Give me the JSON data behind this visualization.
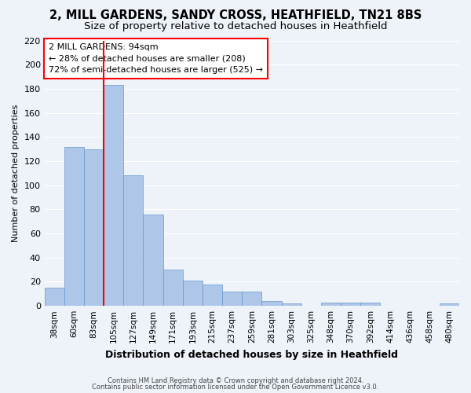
{
  "title1": "2, MILL GARDENS, SANDY CROSS, HEATHFIELD, TN21 8BS",
  "title2": "Size of property relative to detached houses in Heathfield",
  "xlabel": "Distribution of detached houses by size in Heathfield",
  "ylabel": "Number of detached properties",
  "categories": [
    "38sqm",
    "60sqm",
    "83sqm",
    "105sqm",
    "127sqm",
    "149sqm",
    "171sqm",
    "193sqm",
    "215sqm",
    "237sqm",
    "259sqm",
    "281sqm",
    "303sqm",
    "325sqm",
    "348sqm",
    "370sqm",
    "392sqm",
    "414sqm",
    "436sqm",
    "458sqm",
    "480sqm"
  ],
  "values": [
    15,
    132,
    130,
    183,
    108,
    76,
    30,
    21,
    18,
    12,
    12,
    4,
    2,
    0,
    3,
    3,
    3,
    0,
    0,
    0,
    2
  ],
  "bar_color": "#aec6e8",
  "bar_edge_color": "#6699cc",
  "ylim": [
    0,
    220
  ],
  "yticks": [
    0,
    20,
    40,
    60,
    80,
    100,
    120,
    140,
    160,
    180,
    200,
    220
  ],
  "red_line_x": 2.5,
  "annotation_text": "2 MILL GARDENS: 94sqm\n← 28% of detached houses are smaller (208)\n72% of semi-detached houses are larger (525) →",
  "footer1": "Contains HM Land Registry data © Crown copyright and database right 2024.",
  "footer2": "Contains public sector information licensed under the Open Government Licence v3.0.",
  "background_color": "#eef2f9",
  "grid_color": "#ffffff",
  "title_fontsize": 10.5,
  "subtitle_fontsize": 9.5,
  "ylabel_fontsize": 8,
  "xlabel_fontsize": 9
}
